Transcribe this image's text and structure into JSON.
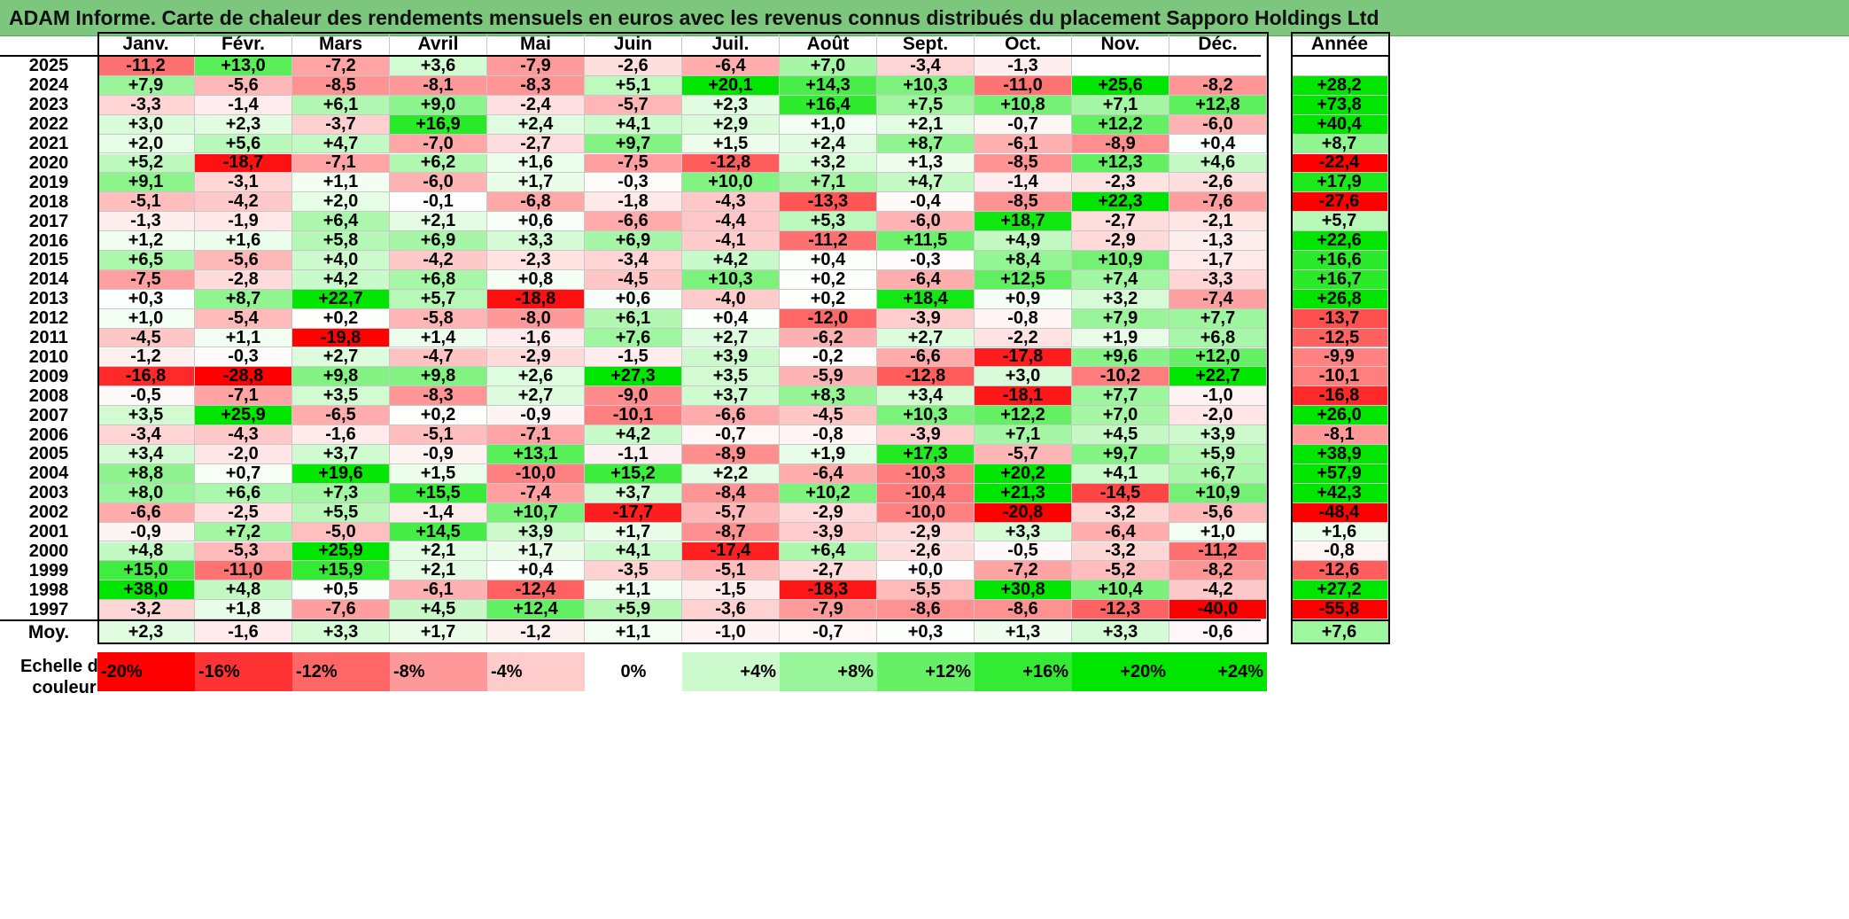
{
  "title": "ADAM Informe. Carte de chaleur des rendements mensuels en euros avec les revenus connus distribués du placement Sapporo Holdings Ltd",
  "colors": {
    "neg_full": "#ff0000",
    "pos_full": "#00e600",
    "title_bg": "#7dc67d"
  },
  "chart_data": {
    "type": "heatmap",
    "months": [
      "Janv.",
      "Févr.",
      "Mars",
      "Avril",
      "Mai",
      "Juin",
      "Juil.",
      "Août",
      "Sept.",
      "Oct.",
      "Nov.",
      "Déc."
    ],
    "year_header": "Année",
    "avg_label": "Moy.",
    "rows": [
      {
        "year": "2025",
        "values": [
          "-11,2",
          "+13,0",
          "-7,2",
          "+3,6",
          "-7,9",
          "-2,6",
          "-6,4",
          "+7,0",
          "-3,4",
          "-1,3",
          "",
          ""
        ],
        "annual": ""
      },
      {
        "year": "2024",
        "values": [
          "+7,9",
          "-5,6",
          "-8,5",
          "-8,1",
          "-8,3",
          "+5,1",
          "+20,1",
          "+14,3",
          "+10,3",
          "-11,0",
          "+25,6",
          "-8,2"
        ],
        "annual": "+28,2"
      },
      {
        "year": "2023",
        "values": [
          "-3,3",
          "-1,4",
          "+6,1",
          "+9,0",
          "-2,4",
          "-5,7",
          "+2,3",
          "+16,4",
          "+7,5",
          "+10,8",
          "+7,1",
          "+12,8"
        ],
        "annual": "+73,8"
      },
      {
        "year": "2022",
        "values": [
          "+3,0",
          "+2,3",
          "-3,7",
          "+16,9",
          "+2,4",
          "+4,1",
          "+2,9",
          "+1,0",
          "+2,1",
          "-0,7",
          "+12,2",
          "-6,0"
        ],
        "annual": "+40,4"
      },
      {
        "year": "2021",
        "values": [
          "+2,0",
          "+5,6",
          "+4,7",
          "-7,0",
          "-2,7",
          "+9,7",
          "+1,5",
          "+2,4",
          "+8,7",
          "-6,1",
          "-8,9",
          "+0,4"
        ],
        "annual": "+8,7"
      },
      {
        "year": "2020",
        "values": [
          "+5,2",
          "-18,7",
          "-7,1",
          "+6,2",
          "+1,6",
          "-7,5",
          "-12,8",
          "+3,2",
          "+1,3",
          "-8,5",
          "+12,3",
          "+4,6"
        ],
        "annual": "-22,4"
      },
      {
        "year": "2019",
        "values": [
          "+9,1",
          "-3,1",
          "+1,1",
          "-6,0",
          "+1,7",
          "-0,3",
          "+10,0",
          "+7,1",
          "+4,7",
          "-1,4",
          "-2,3",
          "-2,6"
        ],
        "annual": "+17,9"
      },
      {
        "year": "2018",
        "values": [
          "-5,1",
          "-4,2",
          "+2,0",
          "-0,1",
          "-6,8",
          "-1,8",
          "-4,3",
          "-13,3",
          "-0,4",
          "-8,5",
          "+22,3",
          "-7,6"
        ],
        "annual": "-27,6"
      },
      {
        "year": "2017",
        "values": [
          "-1,3",
          "-1,9",
          "+6,4",
          "+2,1",
          "+0,6",
          "-6,6",
          "-4,4",
          "+5,3",
          "-6,0",
          "+18,7",
          "-2,7",
          "-2,1"
        ],
        "annual": "+5,7"
      },
      {
        "year": "2016",
        "values": [
          "+1,2",
          "+1,6",
          "+5,8",
          "+6,9",
          "+3,3",
          "+6,9",
          "-4,1",
          "-11,2",
          "+11,5",
          "+4,9",
          "-2,9",
          "-1,3"
        ],
        "annual": "+22,6"
      },
      {
        "year": "2015",
        "values": [
          "+6,5",
          "-5,6",
          "+4,0",
          "-4,2",
          "-2,3",
          "-3,4",
          "+4,2",
          "+0,4",
          "-0,3",
          "+8,4",
          "+10,9",
          "-1,7"
        ],
        "annual": "+16,6"
      },
      {
        "year": "2014",
        "values": [
          "-7,5",
          "-2,8",
          "+4,2",
          "+6,8",
          "+0,8",
          "-4,5",
          "+10,3",
          "+0,2",
          "-6,4",
          "+12,5",
          "+7,4",
          "-3,3"
        ],
        "annual": "+16,7"
      },
      {
        "year": "2013",
        "values": [
          "+0,3",
          "+8,7",
          "+22,7",
          "+5,7",
          "-18,8",
          "+0,6",
          "-4,0",
          "+0,2",
          "+18,4",
          "+0,9",
          "+3,2",
          "-7,4"
        ],
        "annual": "+26,8"
      },
      {
        "year": "2012",
        "values": [
          "+1,0",
          "-5,4",
          "+0,2",
          "-5,8",
          "-8,0",
          "+6,1",
          "+0,4",
          "-12,0",
          "-3,9",
          "-0,8",
          "+7,9",
          "+7,7"
        ],
        "annual": "-13,7"
      },
      {
        "year": "2011",
        "values": [
          "-4,5",
          "+1,1",
          "-19,8",
          "+1,4",
          "-1,6",
          "+7,6",
          "+2,7",
          "-6,2",
          "+2,7",
          "-2,2",
          "+1,9",
          "+6,8"
        ],
        "annual": "-12,5"
      },
      {
        "year": "2010",
        "values": [
          "-1,2",
          "-0,3",
          "+2,7",
          "-4,7",
          "-2,9",
          "-1,5",
          "+3,9",
          "-0,2",
          "-6,6",
          "-17,8",
          "+9,6",
          "+12,0"
        ],
        "annual": "-9,9"
      },
      {
        "year": "2009",
        "values": [
          "-16,8",
          "-28,8",
          "+9,8",
          "+9,8",
          "+2,6",
          "+27,3",
          "+3,5",
          "-5,9",
          "-12,8",
          "+3,0",
          "-10,2",
          "+22,7"
        ],
        "annual": "-10,1"
      },
      {
        "year": "2008",
        "values": [
          "-0,5",
          "-7,1",
          "+3,5",
          "-8,3",
          "+2,7",
          "-9,0",
          "+3,7",
          "+8,3",
          "+3,4",
          "-18,1",
          "+7,7",
          "-1,0"
        ],
        "annual": "-16,8"
      },
      {
        "year": "2007",
        "values": [
          "+3,5",
          "+25,9",
          "-6,5",
          "+0,2",
          "-0,9",
          "-10,1",
          "-6,6",
          "-4,5",
          "+10,3",
          "+12,2",
          "+7,0",
          "-2,0"
        ],
        "annual": "+26,0"
      },
      {
        "year": "2006",
        "values": [
          "-3,4",
          "-4,3",
          "-1,6",
          "-5,1",
          "-7,1",
          "+4,2",
          "-0,7",
          "-0,8",
          "-3,9",
          "+7,1",
          "+4,5",
          "+3,9"
        ],
        "annual": "-8,1"
      },
      {
        "year": "2005",
        "values": [
          "+3,4",
          "-2,0",
          "+3,7",
          "-0,9",
          "+13,1",
          "-1,1",
          "-8,9",
          "+1,9",
          "+17,3",
          "-5,7",
          "+9,7",
          "+5,9"
        ],
        "annual": "+38,9"
      },
      {
        "year": "2004",
        "values": [
          "+8,8",
          "+0,7",
          "+19,6",
          "+1,5",
          "-10,0",
          "+15,2",
          "+2,2",
          "-6,4",
          "-10,3",
          "+20,2",
          "+4,1",
          "+6,7"
        ],
        "annual": "+57,9"
      },
      {
        "year": "2003",
        "values": [
          "+8,0",
          "+6,6",
          "+7,3",
          "+15,5",
          "-7,4",
          "+3,7",
          "-8,4",
          "+10,2",
          "-10,4",
          "+21,3",
          "-14,5",
          "+10,9"
        ],
        "annual": "+42,3"
      },
      {
        "year": "2002",
        "values": [
          "-6,6",
          "-2,5",
          "+5,5",
          "-1,4",
          "+10,7",
          "-17,7",
          "-5,7",
          "-2,9",
          "-10,0",
          "-20,8",
          "-3,2",
          "-5,6"
        ],
        "annual": "-48,4"
      },
      {
        "year": "2001",
        "values": [
          "-0,9",
          "+7,2",
          "-5,0",
          "+14,5",
          "+3,9",
          "+1,7",
          "-8,7",
          "-3,9",
          "-2,9",
          "+3,3",
          "-6,4",
          "+1,0"
        ],
        "annual": "+1,6"
      },
      {
        "year": "2000",
        "values": [
          "+4,8",
          "-5,3",
          "+25,9",
          "+2,1",
          "+1,7",
          "+4,1",
          "-17,4",
          "+6,4",
          "-2,6",
          "-0,5",
          "-3,2",
          "-11,2"
        ],
        "annual": "-0,8"
      },
      {
        "year": "1999",
        "values": [
          "+15,0",
          "-11,0",
          "+15,9",
          "+2,1",
          "+0,4",
          "-3,5",
          "-5,1",
          "-2,7",
          "+0,0",
          "-7,2",
          "-5,2",
          "-8,2"
        ],
        "annual": "-12,6"
      },
      {
        "year": "1998",
        "values": [
          "+38,0",
          "+4,8",
          "+0,5",
          "-6,1",
          "-12,4",
          "+1,1",
          "-1,5",
          "-18,3",
          "-5,5",
          "+30,8",
          "+10,4",
          "-4,2"
        ],
        "annual": "+27,2"
      },
      {
        "year": "1997",
        "values": [
          "-3,2",
          "+1,8",
          "-7,6",
          "+4,5",
          "+12,4",
          "+5,9",
          "-3,6",
          "-7,9",
          "-8,6",
          "-8,6",
          "-12,3",
          "-40,0"
        ],
        "annual": "-55,8"
      }
    ],
    "averages": {
      "values": [
        "+2,3",
        "-1,6",
        "+3,3",
        "+1,7",
        "-1,2",
        "+1,1",
        "-1,0",
        "-0,7",
        "+0,3",
        "+1,3",
        "+3,3",
        "-0,6"
      ],
      "annual": "+7,6"
    },
    "scale": {
      "label_line1": "Echelle de",
      "label_line2": "couleur",
      "steps": [
        "-20%",
        "-16%",
        "-12%",
        "-8%",
        "-4%",
        "0%",
        "+4%",
        "+8%",
        "+12%",
        "+16%",
        "+20%",
        "+24%"
      ]
    }
  }
}
